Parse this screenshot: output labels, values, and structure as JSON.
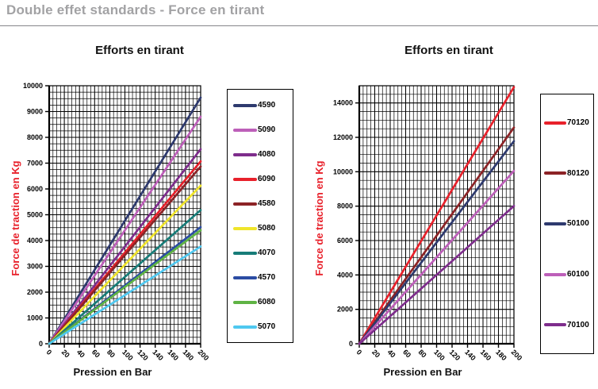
{
  "header": {
    "title": "Double effet standards - Force en tirant"
  },
  "chart_data": [
    {
      "type": "line",
      "title": "Efforts en tirant",
      "xlabel": "Pression en Bar",
      "ylabel": "Force de traction en Kg",
      "xlim": [
        0,
        200
      ],
      "ylim": [
        0,
        10000
      ],
      "xticks": [
        0,
        20,
        40,
        60,
        80,
        100,
        120,
        140,
        160,
        180,
        200
      ],
      "yticks": [
        0,
        1000,
        2000,
        3000,
        4000,
        5000,
        6000,
        7000,
        8000,
        9000,
        10000
      ],
      "x_minor_step": 5,
      "y_minor_step": 250,
      "grid": true,
      "legend_position": "right",
      "axis_title_color": "#E8212B",
      "x": [
        0,
        200
      ],
      "series": [
        {
          "name": "4590",
          "color": "#2E3A6E",
          "values": [
            0,
            9540
          ]
        },
        {
          "name": "5090",
          "color": "#BD5FB9",
          "values": [
            0,
            8800
          ]
        },
        {
          "name": "4080",
          "color": "#7E2D8C",
          "values": [
            0,
            7540
          ]
        },
        {
          "name": "6090",
          "color": "#E8212B",
          "values": [
            0,
            7070
          ]
        },
        {
          "name": "4580",
          "color": "#8C2326",
          "values": [
            0,
            6870
          ]
        },
        {
          "name": "5080",
          "color": "#F0E52B",
          "values": [
            0,
            6130
          ]
        },
        {
          "name": "4070",
          "color": "#177C78",
          "values": [
            0,
            5180
          ]
        },
        {
          "name": "4570",
          "color": "#2B4CA3",
          "values": [
            0,
            4520
          ]
        },
        {
          "name": "6080",
          "color": "#5FB344",
          "values": [
            0,
            4400
          ]
        },
        {
          "name": "5070",
          "color": "#4FC8F0",
          "values": [
            0,
            3770
          ]
        }
      ]
    },
    {
      "type": "line",
      "title": "Efforts en tirant",
      "xlabel": "Pression en Bar",
      "ylabel": "Force de traction en Kg",
      "xlim": [
        0,
        200
      ],
      "ylim": [
        0,
        15000
      ],
      "xticks": [
        0,
        20,
        40,
        60,
        80,
        100,
        120,
        140,
        160,
        180,
        200
      ],
      "yticks": [
        0,
        2000,
        4000,
        6000,
        8000,
        10000,
        12000,
        14000
      ],
      "x_minor_step": 5,
      "y_minor_step": 500,
      "grid": true,
      "legend_position": "right",
      "axis_title_color": "#E8212B",
      "x": [
        0,
        200
      ],
      "series": [
        {
          "name": "70120",
          "color": "#E8212B",
          "values": [
            0,
            14920
          ]
        },
        {
          "name": "80120",
          "color": "#8C2326",
          "values": [
            0,
            12570
          ]
        },
        {
          "name": "50100",
          "color": "#2E3A6E",
          "values": [
            0,
            11780
          ]
        },
        {
          "name": "60100",
          "color": "#BD5FB9",
          "values": [
            0,
            10050
          ]
        },
        {
          "name": "70100",
          "color": "#7E2D8C",
          "values": [
            0,
            8010
          ]
        }
      ]
    }
  ]
}
